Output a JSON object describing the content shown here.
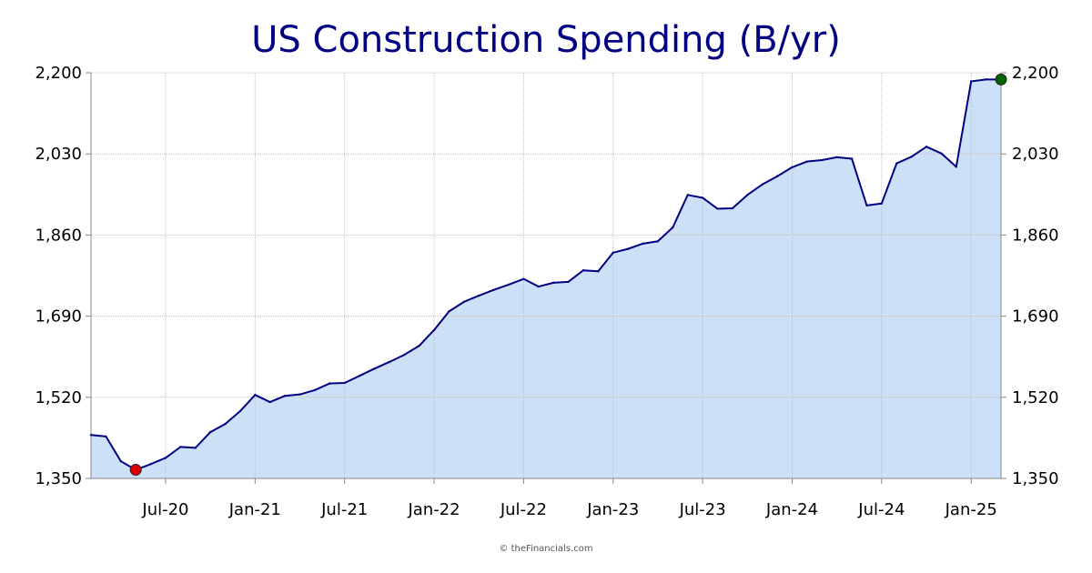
{
  "chart_data": {
    "type": "area",
    "title": "US Construction Spending (B/yr)",
    "xlabel": "",
    "ylabel": "",
    "ylim": [
      1350,
      2200
    ],
    "y_ticks": [
      1350,
      1520,
      1690,
      1860,
      2030,
      2200
    ],
    "y_tick_labels": [
      "1,350",
      "1,520",
      "1,690",
      "1,860",
      "2,030",
      "2,200"
    ],
    "x_tick_labels": [
      "Jul-20",
      "Jan-21",
      "Jul-21",
      "Jan-22",
      "Jul-22",
      "Jan-23",
      "Jul-23",
      "Jan-24",
      "Jul-24",
      "Jan-25"
    ],
    "x_tick_dates": [
      "2020-07",
      "2021-01",
      "2021-07",
      "2022-01",
      "2022-07",
      "2023-01",
      "2023-07",
      "2024-01",
      "2024-07",
      "2025-01"
    ],
    "grid": true,
    "colors": {
      "line": "#000080",
      "fill": "#cce0f7",
      "min_marker": "#dd0000",
      "max_marker": "#006400",
      "title": "#000080",
      "grid": "#c0c0c0"
    },
    "markers": {
      "min": "2020-05",
      "max": "2025-03"
    },
    "series": [
      {
        "x": [
          "2020-02",
          "2020-03",
          "2020-04",
          "2020-05",
          "2020-06",
          "2020-07",
          "2020-08",
          "2020-09",
          "2020-10",
          "2020-11",
          "2020-12",
          "2021-01",
          "2021-02",
          "2021-03",
          "2021-04",
          "2021-05",
          "2021-06",
          "2021-07",
          "2021-08",
          "2021-09",
          "2021-10",
          "2021-11",
          "2021-12",
          "2022-01",
          "2022-02",
          "2022-03",
          "2022-04",
          "2022-05",
          "2022-06",
          "2022-07",
          "2022-08",
          "2022-09",
          "2022-10",
          "2022-11",
          "2022-12",
          "2023-01",
          "2023-02",
          "2023-03",
          "2023-04",
          "2023-05",
          "2023-06",
          "2023-07",
          "2023-08",
          "2023-09",
          "2023-10",
          "2023-11",
          "2023-12",
          "2024-01",
          "2024-02",
          "2024-03",
          "2024-04",
          "2024-05",
          "2024-06",
          "2024-07",
          "2024-08",
          "2024-09",
          "2024-10",
          "2024-11",
          "2024-12",
          "2025-01",
          "2025-02",
          "2025-03"
        ],
        "values": [
          1441,
          1438,
          1386,
          1368,
          1380,
          1393,
          1416,
          1414,
          1447,
          1464,
          1491,
          1525,
          1510,
          1523,
          1526,
          1535,
          1549,
          1550,
          1565,
          1580,
          1594,
          1609,
          1628,
          1661,
          1700,
          1720,
          1733,
          1745,
          1756,
          1768,
          1752,
          1760,
          1762,
          1786,
          1784,
          1823,
          1831,
          1842,
          1847,
          1876,
          1944,
          1938,
          1915,
          1916,
          1944,
          1966,
          1983,
          2002,
          2014,
          2017,
          2023,
          2020,
          1922,
          1926,
          2010,
          2024,
          2045,
          2031,
          2003,
          2182,
          2186,
          2186
        ]
      }
    ]
  },
  "footer": {
    "credit": "© theFinancials.com"
  }
}
